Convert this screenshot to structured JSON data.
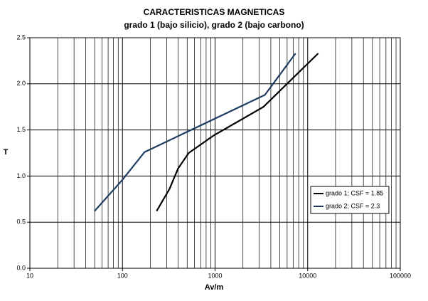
{
  "chart_data": {
    "type": "line",
    "title": "CARACTERISTICAS MAGNETICAS",
    "subtitle": "grado 1 (bajo silicio), grado 2 (bajo carbono)",
    "x_label": "Av/m",
    "y_label": "T",
    "xscale": "log",
    "grid": true,
    "legend": "lower right",
    "xlim": [
      10,
      100000
    ],
    "xticks": [
      10,
      100,
      1000,
      10000,
      100000
    ],
    "ylim": [
      0,
      2.5
    ],
    "yticks": [
      {
        "value": 0,
        "label": "0.0"
      },
      0.5,
      {
        "value": 1,
        "label": "1.0"
      },
      1.5,
      {
        "value": 2,
        "label": "2.0"
      },
      2.5
    ],
    "series": [
      {
        "name": "grado 1; CSF = 1.85",
        "color": "#000000",
        "x": [
          234,
          322,
          398,
          519,
          966,
          3330,
          13000
        ],
        "values": [
          0.62,
          0.86,
          1.08,
          1.25,
          1.44,
          1.75,
          2.33
        ]
      },
      {
        "name": "grado 2; CSF = 2.3",
        "color": "#1f3d63",
        "x": [
          50,
          100,
          173,
          3450,
          7400
        ],
        "values": [
          0.62,
          0.96,
          1.26,
          1.88,
          2.33
        ]
      }
    ]
  }
}
